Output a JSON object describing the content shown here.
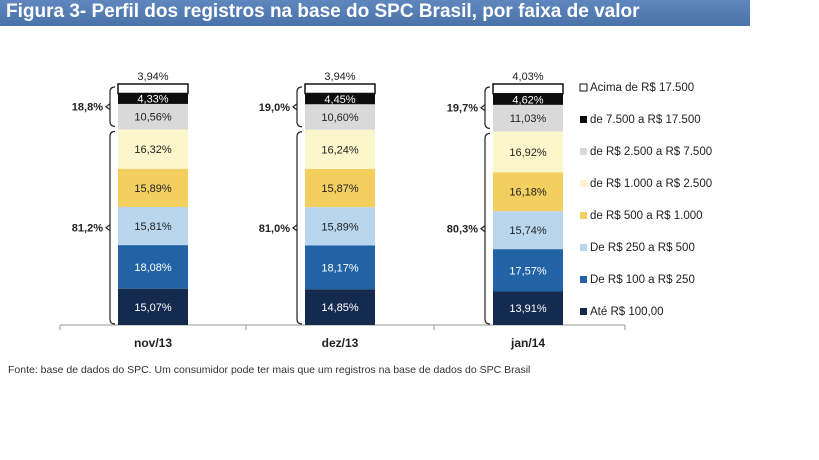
{
  "figure_title": "Figura 3- Perfil dos registros na base do SPC Brasil, por faixa de valor",
  "source_note": "Fonte: base de dados do SPC. Um consumidor pode ter mais que um registros na base de dados do SPC Brasil",
  "chart_data": {
    "type": "bar",
    "stacked": true,
    "percent": true,
    "title": "Figura 3- Perfil dos registros na base do SPC Brasil, por faixa de valor",
    "categories": [
      "nov/13",
      "dez/13",
      "jan/14"
    ],
    "series": [
      {
        "name": "Até R$ 100,00",
        "values": [
          15.07,
          14.85,
          13.91
        ],
        "labels": [
          "15,07%",
          "14,85%",
          "13,91%"
        ],
        "color": "#142a4e",
        "text_color": "#ffffff"
      },
      {
        "name": "De R$ 100 a R$ 250",
        "values": [
          18.08,
          18.17,
          17.57
        ],
        "labels": [
          "18,08%",
          "18,17%",
          "17,57%"
        ],
        "color": "#2163a5",
        "text_color": "#ffffff"
      },
      {
        "name": "De R$ 250 a R$ 500",
        "values": [
          15.81,
          15.89,
          15.74
        ],
        "labels": [
          "15,81%",
          "15,89%",
          "15,74%"
        ],
        "color": "#b9d6ef",
        "text_color": "#222222"
      },
      {
        "name": "de R$ 500 a R$ 1.000",
        "values": [
          15.89,
          15.87,
          16.18
        ],
        "labels": [
          "15,89%",
          "15,87%",
          "16,18%"
        ],
        "color": "#f3cf5f",
        "text_color": "#222222"
      },
      {
        "name": "de R$ 1.000 a R$ 2.500",
        "values": [
          16.32,
          16.24,
          16.92
        ],
        "labels": [
          "16,32%",
          "16,24%",
          "16,92%"
        ],
        "color": "#fcf6cc",
        "text_color": "#222222"
      },
      {
        "name": "de R$ 2.500 a R$ 7.500",
        "values": [
          10.56,
          10.6,
          11.03
        ],
        "labels": [
          "10,56%",
          "10,60%",
          "11,03%"
        ],
        "color": "#d9d9d9",
        "text_color": "#222222"
      },
      {
        "name": "de 7.500 a R$ 17.500",
        "values": [
          4.33,
          4.45,
          4.62
        ],
        "labels": [
          "4,33%",
          "4,45%",
          "4,62%"
        ],
        "color": "#0d0d0d",
        "text_color": "#ffffff"
      },
      {
        "name": "Acima de R$ 17.500",
        "values": [
          3.94,
          3.94,
          4.03
        ],
        "labels": [
          "3,94%",
          "3,94%",
          "4,03%"
        ],
        "color": "#ffffff",
        "text_color": "#222222"
      }
    ],
    "brackets": {
      "upper": [
        "18,8%",
        "19,0%",
        "19,7%"
      ],
      "lower": [
        "81,2%",
        "81,0%",
        "80,3%"
      ]
    },
    "legend_position": "right",
    "grid": false
  }
}
